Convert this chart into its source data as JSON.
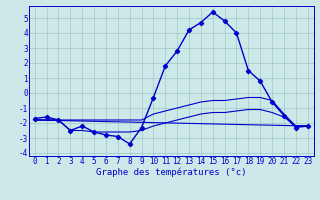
{
  "title": "Graphe des températures (°c)",
  "bg_color": "#cce8e8",
  "grid_color": "#aacccc",
  "line_color": "#0000cc",
  "xlim": [
    -0.5,
    23.5
  ],
  "ylim": [
    -4.2,
    5.8
  ],
  "yticks": [
    -4,
    -3,
    -2,
    -1,
    0,
    1,
    2,
    3,
    4,
    5
  ],
  "xticks": [
    0,
    1,
    2,
    3,
    4,
    5,
    6,
    7,
    8,
    9,
    10,
    11,
    12,
    13,
    14,
    15,
    16,
    17,
    18,
    19,
    20,
    21,
    22,
    23
  ],
  "series1_x": [
    0,
    1,
    2,
    3,
    4,
    5,
    6,
    7,
    8,
    9,
    10,
    11,
    12,
    13,
    14,
    15,
    16,
    17,
    18,
    19,
    20,
    21,
    22,
    23
  ],
  "series1_y": [
    -1.7,
    -1.6,
    -1.8,
    -2.5,
    -2.2,
    -2.6,
    -2.8,
    -2.9,
    -3.4,
    -2.3,
    -0.3,
    1.8,
    2.8,
    4.2,
    4.7,
    5.4,
    4.8,
    4.0,
    1.5,
    0.8,
    -0.6,
    -1.5,
    -2.3,
    -2.2
  ],
  "series2_x": [
    0,
    1,
    2,
    3,
    4,
    5,
    6,
    7,
    8,
    9,
    10,
    11,
    12,
    13,
    14,
    15,
    16,
    17,
    18,
    19,
    20,
    21,
    22,
    23
  ],
  "series2_y": [
    -1.8,
    -1.8,
    -1.8,
    -1.8,
    -1.8,
    -1.8,
    -1.8,
    -1.8,
    -1.8,
    -1.8,
    -1.4,
    -1.2,
    -1.0,
    -0.8,
    -0.6,
    -0.5,
    -0.5,
    -0.4,
    -0.3,
    -0.3,
    -0.5,
    -1.4,
    -2.2,
    -2.2
  ],
  "series3_x": [
    0,
    1,
    2,
    3,
    4,
    5,
    6,
    7,
    8,
    9,
    10,
    11,
    12,
    13,
    14,
    15,
    16,
    17,
    18,
    19,
    20,
    21,
    22,
    23
  ],
  "series3_y": [
    -1.8,
    -1.8,
    -1.8,
    -2.5,
    -2.5,
    -2.6,
    -2.6,
    -2.6,
    -2.6,
    -2.5,
    -2.2,
    -2.0,
    -1.8,
    -1.6,
    -1.4,
    -1.3,
    -1.3,
    -1.2,
    -1.1,
    -1.1,
    -1.3,
    -1.6,
    -2.2,
    -2.2
  ],
  "series4_x": [
    0,
    23
  ],
  "series4_y": [
    -1.8,
    -2.2
  ],
  "tick_fontsize": 5.5,
  "label_fontsize": 6.5
}
